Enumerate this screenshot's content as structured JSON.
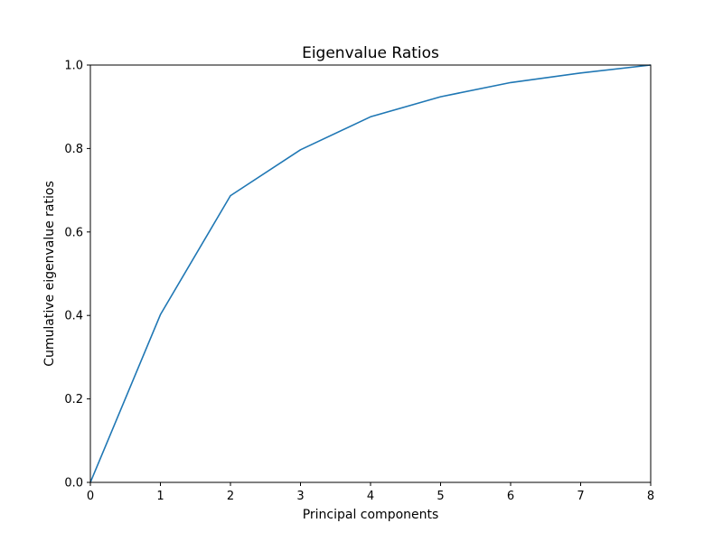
{
  "chart_data": {
    "type": "line",
    "title": "Eigenvalue Ratios",
    "xlabel": "Principal components",
    "ylabel": "Cumulative eigenvalue ratios",
    "xlim": [
      0,
      8
    ],
    "ylim": [
      0,
      1.0
    ],
    "xticks": [
      "0",
      "1",
      "2",
      "3",
      "4",
      "5",
      "6",
      "7",
      "8"
    ],
    "yticks": [
      "0.0",
      "0.2",
      "0.4",
      "0.6",
      "0.8",
      "1.0"
    ],
    "grid": false,
    "series": [
      {
        "color": "#1f77b4",
        "x": [
          0,
          1,
          2,
          3,
          4,
          5,
          6,
          7,
          8
        ],
        "y": [
          0.0,
          0.402,
          0.687,
          0.797,
          0.876,
          0.924,
          0.958,
          0.981,
          1.0
        ]
      }
    ]
  }
}
